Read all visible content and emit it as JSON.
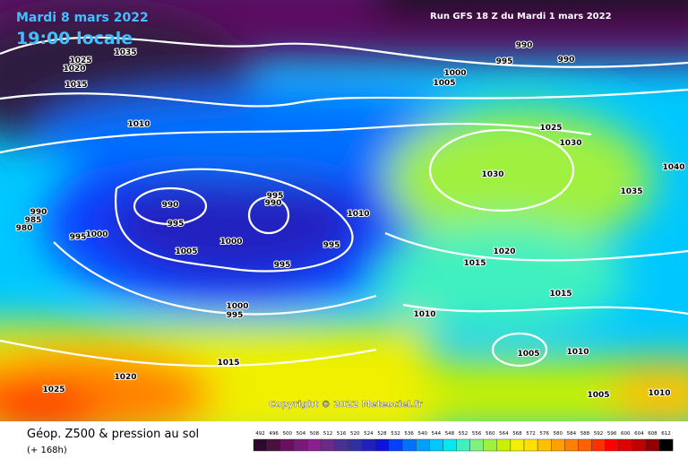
{
  "header": {
    "title": "Mardi 8 mars 2022",
    "subtitle": "19:00 locale",
    "run": "Run GFS 18 Z du Mardi 1 mars 2022"
  },
  "isobars": [
    "1035",
    "1025",
    "1020",
    "1015",
    "1010",
    "990",
    "985",
    "980",
    "995",
    "1000",
    "990",
    "995",
    "1005",
    "995",
    "990",
    "1000",
    "995",
    "995",
    "1010",
    "1000",
    "995",
    "1015",
    "1020",
    "1025",
    "990",
    "990",
    "995",
    "1000",
    "1005",
    "1025",
    "1030",
    "1030",
    "1040",
    "1035",
    "1020",
    "1015",
    "1015",
    "1010",
    "1005",
    "1010",
    "1005",
    "1010"
  ],
  "copyright": "Copyright © 2022 Meteociel.fr",
  "footer": {
    "title": "Géop. Z500 & pression au sol",
    "subtitle": "(+ 168h)"
  },
  "colorbar": {
    "labels": [
      492,
      496,
      500,
      504,
      508,
      512,
      516,
      520,
      524,
      528,
      532,
      536,
      540,
      544,
      548,
      552,
      556,
      560,
      564,
      568,
      572,
      576,
      580,
      584,
      588,
      592,
      596,
      600,
      604,
      608,
      612
    ],
    "colors": [
      "#2d0a2d",
      "#4a1040",
      "#6a1060",
      "#7a1a78",
      "#8a2090",
      "#6a2a8a",
      "#4a3090",
      "#3030a0",
      "#2020c0",
      "#1010e0",
      "#0040ff",
      "#0070ff",
      "#00a0ff",
      "#00c8ff",
      "#00e8f0",
      "#40f0c0",
      "#80f080",
      "#a0f040",
      "#c8f000",
      "#f0f000",
      "#ffe000",
      "#ffc000",
      "#ffa000",
      "#ff8000",
      "#ff6000",
      "#ff3000",
      "#ff0000",
      "#e00000",
      "#c00000",
      "#900000",
      "#000000"
    ]
  }
}
